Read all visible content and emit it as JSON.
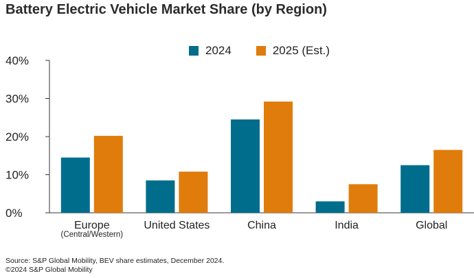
{
  "chart_data": {
    "type": "bar",
    "title": "Battery Electric Vehicle Market Share (by Region)",
    "categories": [
      "Europe",
      "United States",
      "China",
      "India",
      "Global"
    ],
    "category_sublabels": [
      "(Central/Western)",
      "",
      "",
      "",
      ""
    ],
    "series": [
      {
        "name": "2024",
        "color": "#006d8c",
        "values": [
          14.5,
          8.5,
          24.5,
          3.0,
          12.5
        ]
      },
      {
        "name": "2025 (Est.)",
        "color": "#e07c0b",
        "values": [
          20.2,
          10.8,
          29.2,
          7.5,
          16.5
        ]
      }
    ],
    "yticks": [
      "0%",
      "10%",
      "20%",
      "30%",
      "40%"
    ],
    "ylim": [
      0,
      40
    ],
    "xlabel": "",
    "ylabel": "",
    "grid": false,
    "legend_position": "top-center"
  },
  "footer": {
    "source": "Source: S&P Global Mobility, BEV share estimates, December 2024.",
    "copyright": "©2024 S&P Global Mobility"
  }
}
